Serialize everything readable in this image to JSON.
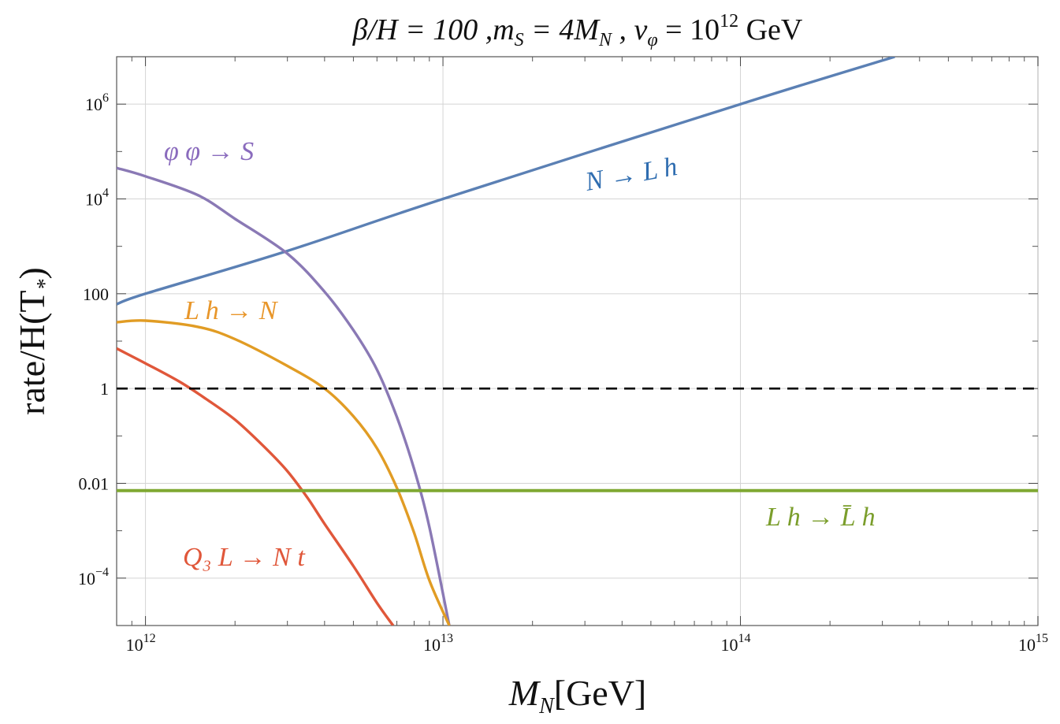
{
  "chart_data": {
    "type": "line",
    "title": "β/H = 100 , m_S = 4M_N , v_φ = 10^12 GeV",
    "title_parts": {
      "beta_h": "β/H = 100 ,",
      "ms": "m",
      "ms_sub": "S",
      "ms_rhs": " = 4M",
      "ms_rhs_sub": "N",
      "v": " , v",
      "v_sub": "φ",
      "v_rhs": " = 10",
      "v_exp": "12",
      "unit": " GeV"
    },
    "xlabel": "M_N[GeV]",
    "xlabel_parts": {
      "main": "M",
      "sub": "N",
      "rest": "[GeV]"
    },
    "ylabel": "rate/H(T_*)",
    "ylabel_parts": {
      "main": "rate/H(T",
      "sub": "*",
      "rest": ")"
    },
    "x_scale": "log",
    "y_scale": "log",
    "xlim": [
      800000000000.0,
      1000000000000000.0
    ],
    "ylim": [
      1e-05,
      10000000.0
    ],
    "grid": true,
    "x_ticks": [
      {
        "value": 1000000000000.0,
        "base": "10",
        "exp": "12"
      },
      {
        "value": 10000000000000.0,
        "base": "10",
        "exp": "13"
      },
      {
        "value": 100000000000000.0,
        "base": "10",
        "exp": "14"
      },
      {
        "value": 1000000000000000.0,
        "base": "10",
        "exp": "15"
      }
    ],
    "y_ticks": [
      {
        "value": 0.0001,
        "base": "10",
        "exp": "−4"
      },
      {
        "value": 0.01,
        "base": "0.01",
        "exp": ""
      },
      {
        "value": 1,
        "base": "1",
        "exp": ""
      },
      {
        "value": 100,
        "base": "100",
        "exp": ""
      },
      {
        "value": 10000.0,
        "base": "10",
        "exp": "4"
      },
      {
        "value": 1000000.0,
        "base": "10",
        "exp": "6"
      }
    ],
    "reference_line": {
      "y": 1,
      "style": "dashed",
      "color": "#000000"
    },
    "series": [
      {
        "name": "N → L h",
        "color": "#5b80b4",
        "label_color": "#2f6db0",
        "x": [
          800000000000.0,
          1000000000000.0,
          3000000000000.0,
          10000000000000.0,
          100000000000000.0,
          330000000000000.0
        ],
        "y": [
          60,
          100,
          800,
          10000.0,
          1000000.0,
          10000000.0
        ]
      },
      {
        "name": "φ φ → S",
        "color": "#8a79b5",
        "label_color": "#8a6bbd",
        "x": [
          800000000000.0,
          1000000000000.0,
          1500000000000.0,
          2000000000000.0,
          3000000000000.0,
          4000000000000.0,
          5000000000000.0,
          6000000000000.0,
          7000000000000.0,
          8000000000000.0,
          9000000000000.0,
          10500000000000.0
        ],
        "y": [
          45000,
          30000,
          12000,
          3800,
          700,
          110,
          17,
          2.5,
          0.25,
          0.02,
          0.0012,
          1e-05
        ]
      },
      {
        "name": "L h → N",
        "color": "#e19c24",
        "label_color": "#e8962a",
        "x": [
          800000000000.0,
          1000000000000.0,
          1500000000000.0,
          2000000000000.0,
          3000000000000.0,
          4000000000000.0,
          5000000000000.0,
          6000000000000.0,
          7000000000000.0,
          8000000000000.0,
          9000000000000.0,
          10500000000000.0
        ],
        "y": [
          25,
          27,
          20,
          11,
          3,
          1,
          0.26,
          0.055,
          0.008,
          0.0009,
          9e-05,
          1e-05
        ]
      },
      {
        "name": "Q₃ L → N t",
        "color": "#e0573a",
        "label_color": "#e0573a",
        "x": [
          800000000000.0,
          1000000000000.0,
          1300000000000.0,
          1600000000000.0,
          2000000000000.0,
          2500000000000.0,
          3000000000000.0,
          3500000000000.0,
          4000000000000.0,
          5000000000000.0,
          6000000000000.0,
          6800000000000.0
        ],
        "y": [
          7,
          3.4,
          1.4,
          0.6,
          0.22,
          0.06,
          0.018,
          0.005,
          0.0014,
          0.00018,
          3e-05,
          1e-05
        ]
      },
      {
        "name": "L h → L̄ h",
        "color": "#7fa832",
        "label_color": "#7b9e2c",
        "x": [
          800000000000.0,
          1000000000000000.0
        ],
        "y": [
          0.007,
          0.007
        ]
      }
    ],
    "series_label_parts": [
      {
        "text": "N → L h"
      },
      {
        "text": "φ φ → S"
      },
      {
        "text": "L h → N"
      },
      {
        "text": "Q₃ L → N t"
      },
      {
        "text": "L h → L̄ h"
      }
    ]
  }
}
